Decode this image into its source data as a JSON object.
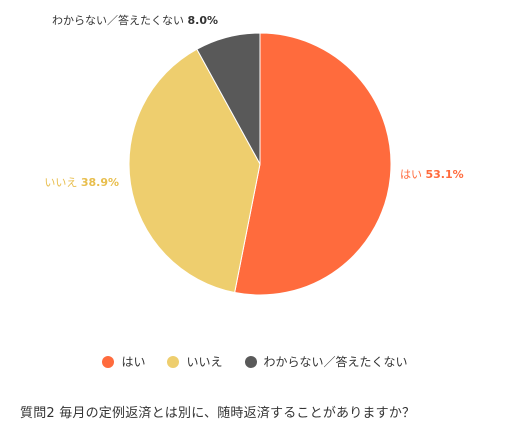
{
  "chart_data": {
    "type": "pie",
    "slices": [
      {
        "label": "はい",
        "value": 53.1,
        "display": "53.1%",
        "color": "#ff6b3d"
      },
      {
        "label": "いいえ",
        "value": 38.9,
        "display": "38.9%",
        "color": "#eece6e"
      },
      {
        "label": "わからない／答えたくない",
        "value": 8.0,
        "display": "8.0%",
        "color": "#595959"
      }
    ],
    "legend_position": "bottom",
    "caption": "質問2 毎月の定例返済とは別に、随時返済することがありますか？"
  }
}
